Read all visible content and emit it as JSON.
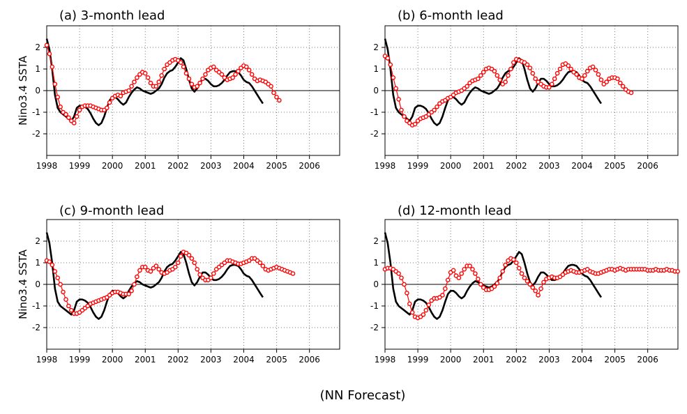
{
  "figure": {
    "caption": "(NN Forecast)",
    "ylabel": "Nino3.4 SSTA"
  },
  "chart_data": [
    {
      "type": "line",
      "title": "(a) 3-month lead",
      "ylabel": "Nino3.4 SSTA",
      "xlim": [
        1998.0,
        2006.92
      ],
      "ylim": [
        -3,
        3
      ],
      "xticks": [
        1998,
        1999,
        2000,
        2001,
        2002,
        2003,
        2004,
        2005,
        2006
      ],
      "yticks": [
        -2,
        -1,
        0,
        1,
        2
      ],
      "grid": true,
      "series": [
        {
          "role": "observed",
          "color": "#000000",
          "style": "solid",
          "x_start": 1998.0,
          "x_step": 0.0833,
          "values": [
            2.4,
            1.9,
            1.0,
            -0.2,
            -0.8,
            -1.0,
            -1.1,
            -1.2,
            -1.3,
            -1.4,
            -1.2,
            -0.8,
            -0.7,
            -0.7,
            -0.75,
            -0.85,
            -1.05,
            -1.3,
            -1.5,
            -1.6,
            -1.5,
            -1.2,
            -0.8,
            -0.45,
            -0.3,
            -0.3,
            -0.4,
            -0.55,
            -0.65,
            -0.55,
            -0.3,
            -0.1,
            0.05,
            0.15,
            0.1,
            0.0,
            -0.05,
            -0.1,
            -0.15,
            -0.1,
            0.0,
            0.1,
            0.3,
            0.6,
            0.8,
            0.9,
            0.95,
            1.1,
            1.3,
            1.5,
            1.4,
            1.0,
            0.5,
            0.1,
            -0.05,
            0.1,
            0.35,
            0.55,
            0.55,
            0.45,
            0.3,
            0.2,
            0.2,
            0.25,
            0.35,
            0.5,
            0.7,
            0.85,
            0.9,
            0.9,
            0.85,
            0.7,
            0.5,
            0.4,
            0.35,
            0.2,
            0.0,
            -0.2,
            -0.4,
            -0.6
          ]
        },
        {
          "role": "forecast",
          "color": "#ff0000",
          "style": "circles",
          "x_start": 1998.0,
          "x_step": 0.0833,
          "values": [
            2.1,
            1.7,
            1.1,
            0.3,
            -0.3,
            -0.75,
            -1.0,
            -1.1,
            -1.25,
            -1.4,
            -1.5,
            -1.2,
            -0.9,
            -0.75,
            -0.7,
            -0.7,
            -0.7,
            -0.75,
            -0.8,
            -0.85,
            -0.9,
            -0.9,
            -0.8,
            -0.55,
            -0.35,
            -0.25,
            -0.2,
            -0.25,
            -0.1,
            -0.05,
            0.0,
            0.2,
            0.4,
            0.6,
            0.75,
            0.85,
            0.8,
            0.6,
            0.35,
            0.2,
            0.2,
            0.4,
            0.7,
            1.0,
            1.2,
            1.3,
            1.4,
            1.45,
            1.4,
            1.3,
            1.1,
            0.8,
            0.55,
            0.3,
            0.15,
            0.2,
            0.35,
            0.55,
            0.75,
            0.95,
            1.05,
            1.1,
            0.95,
            0.85,
            0.75,
            0.6,
            0.5,
            0.55,
            0.6,
            0.75,
            0.9,
            1.05,
            1.15,
            1.1,
            0.95,
            0.75,
            0.55,
            0.45,
            0.5,
            0.45,
            0.4,
            0.3,
            0.2,
            -0.1,
            -0.3,
            -0.45
          ]
        }
      ]
    },
    {
      "type": "line",
      "title": "(b) 6-month lead",
      "ylabel": "",
      "xlim": [
        1998.0,
        2006.92
      ],
      "ylim": [
        -3,
        3
      ],
      "xticks": [
        1998,
        1999,
        2000,
        2001,
        2002,
        2003,
        2004,
        2005,
        2006
      ],
      "yticks": [
        -2,
        -1,
        0,
        1,
        2
      ],
      "grid": true,
      "series": [
        {
          "role": "observed",
          "color": "#000000",
          "style": "solid",
          "x_start": 1998.0,
          "x_step": 0.0833,
          "values": [
            2.4,
            1.9,
            1.0,
            -0.2,
            -0.8,
            -1.0,
            -1.1,
            -1.2,
            -1.3,
            -1.4,
            -1.2,
            -0.8,
            -0.7,
            -0.7,
            -0.75,
            -0.85,
            -1.05,
            -1.3,
            -1.5,
            -1.6,
            -1.5,
            -1.2,
            -0.8,
            -0.45,
            -0.3,
            -0.3,
            -0.4,
            -0.55,
            -0.65,
            -0.55,
            -0.3,
            -0.1,
            0.05,
            0.15,
            0.1,
            0.0,
            -0.05,
            -0.1,
            -0.15,
            -0.1,
            0.0,
            0.1,
            0.3,
            0.6,
            0.8,
            0.9,
            0.95,
            1.1,
            1.3,
            1.5,
            1.4,
            1.0,
            0.5,
            0.1,
            -0.05,
            0.1,
            0.35,
            0.55,
            0.55,
            0.45,
            0.3,
            0.2,
            0.2,
            0.25,
            0.35,
            0.5,
            0.7,
            0.85,
            0.9,
            0.9,
            0.85,
            0.7,
            0.5,
            0.4,
            0.35,
            0.2,
            0.0,
            -0.2,
            -0.4,
            -0.6
          ]
        },
        {
          "role": "forecast",
          "color": "#ff0000",
          "style": "circles",
          "x_start": 1998.0,
          "x_step": 0.0833,
          "values": [
            1.6,
            1.5,
            1.2,
            0.6,
            0.1,
            -0.4,
            -0.9,
            -1.2,
            -1.4,
            -1.5,
            -1.6,
            -1.55,
            -1.4,
            -1.3,
            -1.25,
            -1.2,
            -1.1,
            -1.0,
            -0.9,
            -0.75,
            -0.6,
            -0.5,
            -0.45,
            -0.35,
            -0.3,
            -0.2,
            -0.1,
            -0.05,
            0.0,
            0.1,
            0.2,
            0.35,
            0.45,
            0.5,
            0.55,
            0.7,
            0.85,
            1.0,
            1.05,
            1.0,
            0.9,
            0.7,
            0.5,
            0.3,
            0.4,
            0.7,
            1.0,
            1.3,
            1.45,
            1.4,
            1.35,
            1.3,
            1.2,
            1.05,
            0.8,
            0.55,
            0.4,
            0.3,
            0.2,
            0.15,
            0.15,
            0.3,
            0.55,
            0.8,
            1.0,
            1.2,
            1.25,
            1.15,
            1.0,
            0.85,
            0.75,
            0.6,
            0.55,
            0.7,
            0.9,
            1.05,
            1.1,
            0.95,
            0.75,
            0.5,
            0.3,
            0.4,
            0.55,
            0.6,
            0.6,
            0.55,
            0.35,
            0.2,
            0.05,
            -0.05,
            -0.1
          ]
        }
      ]
    },
    {
      "type": "line",
      "title": "(c) 9-month lead",
      "ylabel": "Nino3.4 SSTA",
      "xlim": [
        1998.0,
        2006.92
      ],
      "ylim": [
        -3,
        3
      ],
      "xticks": [
        1998,
        1999,
        2000,
        2001,
        2002,
        2003,
        2004,
        2005,
        2006
      ],
      "yticks": [
        -2,
        -1,
        0,
        1,
        2
      ],
      "grid": true,
      "series": [
        {
          "role": "observed",
          "color": "#000000",
          "style": "solid",
          "x_start": 1998.0,
          "x_step": 0.0833,
          "values": [
            2.4,
            1.9,
            1.0,
            -0.2,
            -0.8,
            -1.0,
            -1.1,
            -1.2,
            -1.3,
            -1.4,
            -1.2,
            -0.8,
            -0.7,
            -0.7,
            -0.75,
            -0.85,
            -1.05,
            -1.3,
            -1.5,
            -1.6,
            -1.5,
            -1.2,
            -0.8,
            -0.45,
            -0.3,
            -0.3,
            -0.4,
            -0.55,
            -0.65,
            -0.55,
            -0.3,
            -0.1,
            0.05,
            0.15,
            0.1,
            0.0,
            -0.05,
            -0.1,
            -0.15,
            -0.1,
            0.0,
            0.1,
            0.3,
            0.6,
            0.8,
            0.9,
            0.95,
            1.1,
            1.3,
            1.5,
            1.4,
            1.0,
            0.5,
            0.1,
            -0.05,
            0.1,
            0.35,
            0.55,
            0.55,
            0.45,
            0.3,
            0.2,
            0.2,
            0.25,
            0.35,
            0.5,
            0.7,
            0.85,
            0.9,
            0.9,
            0.85,
            0.7,
            0.5,
            0.4,
            0.35,
            0.2,
            0.0,
            -0.2,
            -0.4,
            -0.6
          ]
        },
        {
          "role": "forecast",
          "color": "#ff0000",
          "style": "circles",
          "x_start": 1998.0,
          "x_step": 0.0833,
          "values": [
            1.1,
            1.05,
            0.9,
            0.6,
            0.3,
            0.0,
            -0.35,
            -0.7,
            -1.0,
            -1.2,
            -1.35,
            -1.35,
            -1.3,
            -1.2,
            -1.1,
            -1.0,
            -0.9,
            -0.85,
            -0.8,
            -0.75,
            -0.7,
            -0.65,
            -0.6,
            -0.5,
            -0.4,
            -0.35,
            -0.35,
            -0.4,
            -0.45,
            -0.45,
            -0.45,
            -0.3,
            0.0,
            0.35,
            0.65,
            0.8,
            0.8,
            0.65,
            0.6,
            0.75,
            0.85,
            0.7,
            0.55,
            0.5,
            0.55,
            0.65,
            0.7,
            0.8,
            1.0,
            1.3,
            1.5,
            1.45,
            1.35,
            1.2,
            1.0,
            0.7,
            0.45,
            0.3,
            0.2,
            0.2,
            0.3,
            0.5,
            0.7,
            0.8,
            0.9,
            1.0,
            1.1,
            1.1,
            1.05,
            1.0,
            0.95,
            0.95,
            1.0,
            1.05,
            1.1,
            1.2,
            1.2,
            1.1,
            1.0,
            0.85,
            0.7,
            0.65,
            0.7,
            0.75,
            0.8,
            0.75,
            0.7,
            0.65,
            0.6,
            0.55,
            0.5
          ]
        }
      ]
    },
    {
      "type": "line",
      "title": "(d) 12-month lead",
      "ylabel": "",
      "xlim": [
        1998.0,
        2006.92
      ],
      "ylim": [
        -3,
        3
      ],
      "xticks": [
        1998,
        1999,
        2000,
        2001,
        2002,
        2003,
        2004,
        2005,
        2006
      ],
      "yticks": [
        -2,
        -1,
        0,
        1,
        2
      ],
      "grid": true,
      "series": [
        {
          "role": "observed",
          "color": "#000000",
          "style": "solid",
          "x_start": 1998.0,
          "x_step": 0.0833,
          "values": [
            2.4,
            1.9,
            1.0,
            -0.2,
            -0.8,
            -1.0,
            -1.1,
            -1.2,
            -1.3,
            -1.4,
            -1.2,
            -0.8,
            -0.7,
            -0.7,
            -0.75,
            -0.85,
            -1.05,
            -1.3,
            -1.5,
            -1.6,
            -1.5,
            -1.2,
            -0.8,
            -0.45,
            -0.3,
            -0.3,
            -0.4,
            -0.55,
            -0.65,
            -0.55,
            -0.3,
            -0.1,
            0.05,
            0.15,
            0.1,
            0.0,
            -0.05,
            -0.1,
            -0.15,
            -0.1,
            0.0,
            0.1,
            0.3,
            0.6,
            0.8,
            0.9,
            0.95,
            1.1,
            1.3,
            1.5,
            1.4,
            1.0,
            0.5,
            0.1,
            -0.05,
            0.1,
            0.35,
            0.55,
            0.55,
            0.45,
            0.3,
            0.2,
            0.2,
            0.25,
            0.35,
            0.5,
            0.7,
            0.85,
            0.9,
            0.9,
            0.85,
            0.7,
            0.5,
            0.4,
            0.35,
            0.2,
            0.0,
            -0.2,
            -0.4,
            -0.6
          ]
        },
        {
          "role": "forecast",
          "color": "#ff0000",
          "style": "circles",
          "x_start": 1998.0,
          "x_step": 0.0833,
          "values": [
            0.7,
            0.75,
            0.75,
            0.7,
            0.6,
            0.5,
            0.3,
            0.0,
            -0.4,
            -0.9,
            -1.3,
            -1.5,
            -1.55,
            -1.5,
            -1.4,
            -1.2,
            -0.95,
            -0.75,
            -0.65,
            -0.65,
            -0.6,
            -0.5,
            -0.2,
            0.2,
            0.55,
            0.65,
            0.4,
            0.3,
            0.5,
            0.7,
            0.85,
            0.85,
            0.7,
            0.5,
            0.25,
            0.0,
            -0.15,
            -0.25,
            -0.25,
            -0.2,
            -0.1,
            0.05,
            0.3,
            0.6,
            0.9,
            1.1,
            1.2,
            1.15,
            1.0,
            0.75,
            0.5,
            0.3,
            0.15,
            0.0,
            -0.15,
            -0.3,
            -0.5,
            -0.2,
            0.1,
            0.25,
            0.3,
            0.35,
            0.3,
            0.3,
            0.35,
            0.45,
            0.55,
            0.6,
            0.65,
            0.6,
            0.55,
            0.55,
            0.6,
            0.65,
            0.7,
            0.6,
            0.55,
            0.5,
            0.5,
            0.55,
            0.6,
            0.65,
            0.7,
            0.7,
            0.65,
            0.7,
            0.75,
            0.7,
            0.65,
            0.7,
            0.7,
            0.7,
            0.7,
            0.7,
            0.7,
            0.7,
            0.65,
            0.65,
            0.65,
            0.7,
            0.65,
            0.65,
            0.65,
            0.7,
            0.65,
            0.65,
            0.6,
            0.6
          ]
        }
      ]
    }
  ]
}
